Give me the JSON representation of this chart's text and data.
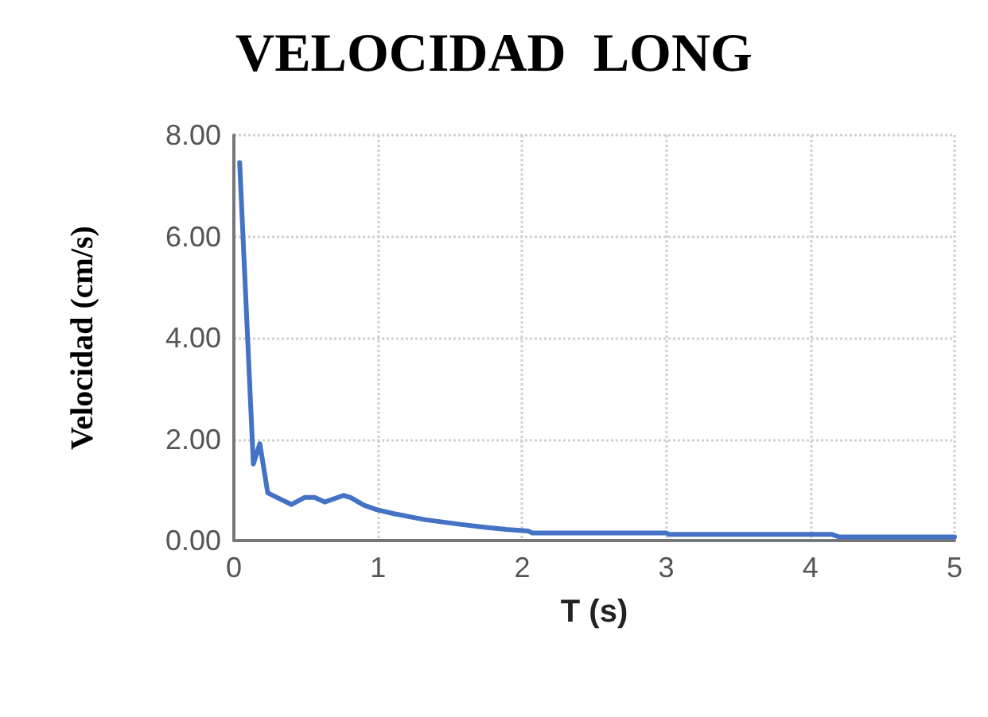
{
  "chart_data": {
    "type": "line",
    "title": "VELOCIDAD  LONG",
    "xlabel": "T (s)",
    "ylabel": "Velocidad (cm/s)",
    "series": [
      {
        "color": "#4472c4",
        "x": [
          0.04,
          0.135,
          0.18,
          0.235,
          0.4,
          0.49,
          0.56,
          0.63,
          0.76,
          0.81,
          0.9,
          0.99,
          1.11,
          1.33,
          1.57,
          1.75,
          1.89,
          2.04,
          2.07,
          3.0,
          3.02,
          4.15,
          4.2,
          5.0
        ],
        "values": [
          7.46,
          1.51,
          1.91,
          0.94,
          0.71,
          0.85,
          0.85,
          0.76,
          0.89,
          0.85,
          0.7,
          0.61,
          0.53,
          0.41,
          0.32,
          0.26,
          0.22,
          0.19,
          0.15,
          0.15,
          0.12,
          0.12,
          0.07,
          0.07
        ]
      }
    ],
    "xlim": [
      0,
      5
    ],
    "xticks": [
      0,
      1,
      2,
      3,
      4,
      5
    ],
    "ylim": [
      0,
      8
    ],
    "yticks": [
      {
        "value": 0,
        "label": "0.00"
      },
      {
        "value": 2,
        "label": "2.00"
      },
      {
        "value": 4,
        "label": "4.00"
      },
      {
        "value": 6,
        "label": "6.00"
      },
      {
        "value": 8,
        "label": "8.00"
      }
    ],
    "grid": true,
    "marker": "none",
    "line_style": "solid"
  }
}
